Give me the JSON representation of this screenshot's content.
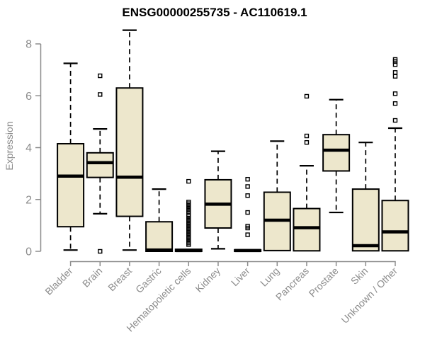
{
  "colors": {
    "box_fill": "#EDE7CC",
    "box_stroke": "#000000",
    "median": "#000000",
    "whisker": "#000000",
    "axis": "#8c8c8c",
    "tick_text": "#8c8c8c",
    "title": "#000000",
    "background": "#FFFFFF"
  },
  "chart_data": {
    "type": "boxplot",
    "title": "ENSG00000255735 - AC110619.1",
    "xlabel": "",
    "ylabel": "Expression",
    "ylim": [
      0,
      8.6
    ],
    "yticks": [
      0,
      2,
      4,
      6,
      8
    ],
    "grid": false,
    "legend": "none",
    "categories": [
      "Bladder",
      "Brain",
      "Breast",
      "Gastric",
      "Hematopoietic cells",
      "Kidney",
      "Liver",
      "Lung",
      "Pancreas",
      "Prostate",
      "Skin",
      "Unknown / Other"
    ],
    "boxes": [
      {
        "category": "Bladder",
        "whisker_low": 0.05,
        "q1": 0.95,
        "median": 2.9,
        "q3": 4.15,
        "whisker_high": 7.25,
        "outliers": []
      },
      {
        "category": "Brain",
        "whisker_low": 1.45,
        "q1": 2.85,
        "median": 3.42,
        "q3": 3.8,
        "whisker_high": 4.72,
        "outliers": [
          6.77,
          6.05,
          0.0
        ]
      },
      {
        "category": "Breast",
        "whisker_low": 0.05,
        "q1": 1.35,
        "median": 2.86,
        "q3": 6.3,
        "whisker_high": 8.53,
        "outliers": []
      },
      {
        "category": "Gastric",
        "whisker_low": 0.0,
        "q1": 0.0,
        "median": 0.05,
        "q3": 1.14,
        "whisker_high": 2.4,
        "outliers": []
      },
      {
        "category": "Hematopoietic cells",
        "whisker_low": 0.0,
        "q1": 0.0,
        "median": 0.03,
        "q3": 0.08,
        "whisker_high": 0.08,
        "outliers": [
          2.7,
          1.9,
          1.84,
          1.78,
          1.72,
          1.66,
          1.6,
          1.54,
          1.48,
          1.4,
          1.34,
          1.28,
          1.22,
          1.16,
          1.1,
          1.04,
          0.98,
          0.92,
          0.86,
          0.8,
          0.74,
          0.68,
          0.62,
          0.56,
          0.5,
          0.44,
          0.38,
          0.32,
          0.26
        ]
      },
      {
        "category": "Kidney",
        "whisker_low": 0.1,
        "q1": 0.9,
        "median": 1.82,
        "q3": 2.76,
        "whisker_high": 3.86,
        "outliers": []
      },
      {
        "category": "Liver",
        "whisker_low": 0.0,
        "q1": 0.0,
        "median": 0.03,
        "q3": 0.06,
        "whisker_high": 0.06,
        "outliers": [
          2.78,
          2.5,
          2.15,
          1.5,
          0.97,
          0.9,
          0.64
        ]
      },
      {
        "category": "Lung",
        "whisker_low": 0.03,
        "q1": 0.03,
        "median": 1.2,
        "q3": 2.28,
        "whisker_high": 4.25,
        "outliers": []
      },
      {
        "category": "Pancreas",
        "whisker_low": 0.02,
        "q1": 0.02,
        "median": 0.91,
        "q3": 1.65,
        "whisker_high": 3.3,
        "outliers": [
          5.98,
          4.45,
          4.2
        ]
      },
      {
        "category": "Prostate",
        "whisker_low": 1.5,
        "q1": 3.1,
        "median": 3.9,
        "q3": 4.5,
        "whisker_high": 5.85,
        "outliers": []
      },
      {
        "category": "Skin",
        "whisker_low": 0.02,
        "q1": 0.02,
        "median": 0.22,
        "q3": 2.4,
        "whisker_high": 4.2,
        "outliers": []
      },
      {
        "category": "Unknown / Other",
        "whisker_low": 0.02,
        "q1": 0.02,
        "median": 0.75,
        "q3": 1.96,
        "whisker_high": 4.75,
        "outliers": [
          7.4,
          7.32,
          7.2,
          6.9,
          6.75,
          6.08,
          5.7,
          5.05
        ]
      }
    ]
  }
}
